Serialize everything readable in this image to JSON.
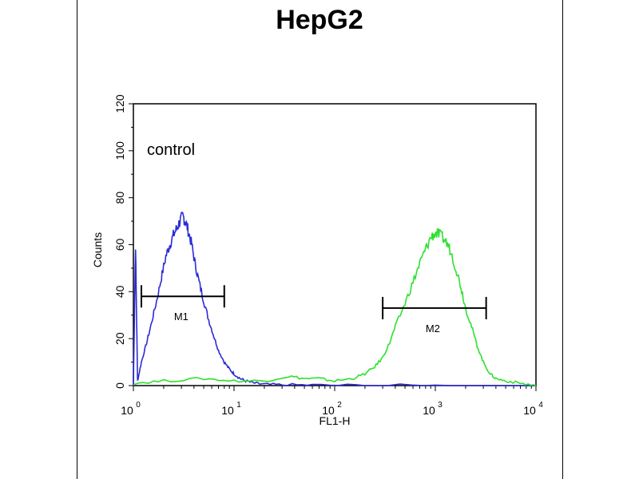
{
  "chart_data": {
    "type": "line",
    "title": "HepG2",
    "xlabel": "FL1-H",
    "ylabel": "Counts",
    "x_scale": "log",
    "xlim": [
      1,
      10000
    ],
    "ylim": [
      0,
      120
    ],
    "x_ticks": [
      {
        "value": 1,
        "base": "10",
        "exp": "0"
      },
      {
        "value": 10,
        "base": "10",
        "exp": "1"
      },
      {
        "value": 100,
        "base": "10",
        "exp": "2"
      },
      {
        "value": 1000,
        "base": "10",
        "exp": "3"
      },
      {
        "value": 10000,
        "base": "10",
        "exp": "4"
      }
    ],
    "y_ticks": [
      "0",
      "20",
      "40",
      "60",
      "80",
      "100",
      "120"
    ],
    "grid": false,
    "annotations": {
      "control_label": "control",
      "markers": [
        {
          "label": "M1",
          "x_start": 1.2,
          "x_end": 8,
          "y": 38
        },
        {
          "label": "M2",
          "x_start": 300,
          "x_end": 3200,
          "y": 33
        }
      ]
    },
    "series": [
      {
        "color": "#2b2bd6",
        "x": [
          1.0,
          1.05,
          1.1,
          1.2,
          1.35,
          1.5,
          1.7,
          1.9,
          2.1,
          2.3,
          2.5,
          2.7,
          2.9,
          3.1,
          3.3,
          3.5,
          3.8,
          4.1,
          4.5,
          5.0,
          5.6,
          6.3,
          7.0,
          8.0,
          9.0,
          10.0,
          11.5,
          13.0,
          16.0,
          20.0,
          30.0,
          60.0,
          200.0,
          1000.0,
          10000.0
        ],
        "values": [
          0,
          60,
          2,
          10,
          18,
          26,
          36,
          46,
          55,
          60,
          64,
          67,
          70,
          72,
          70,
          66,
          60,
          52,
          44,
          36,
          28,
          21,
          15,
          10,
          7,
          5,
          3,
          2,
          1,
          0.5,
          0.3,
          0.2,
          0.1,
          0,
          0
        ]
      },
      {
        "color": "#2fe02f",
        "x": [
          1.0,
          2.0,
          5.0,
          10.0,
          20.0,
          35.0,
          50.0,
          70.0,
          100.0,
          150.0,
          200.0,
          250.0,
          300.0,
          350.0,
          400.0,
          500.0,
          600.0,
          700.0,
          800.0,
          900.0,
          1000.0,
          1100.0,
          1250.0,
          1400.0,
          1600.0,
          1800.0,
          2000.0,
          2300.0,
          2600.0,
          3000.0,
          3500.0,
          4000.0,
          5000.0,
          7000.0,
          10000.0
        ],
        "values": [
          1,
          2,
          3,
          2,
          2,
          4,
          3,
          3,
          2,
          3,
          5,
          8,
          12,
          18,
          25,
          35,
          44,
          52,
          58,
          63,
          65,
          64,
          62,
          58,
          50,
          42,
          33,
          25,
          17,
          10,
          5,
          3,
          2,
          1,
          0
        ]
      }
    ]
  }
}
